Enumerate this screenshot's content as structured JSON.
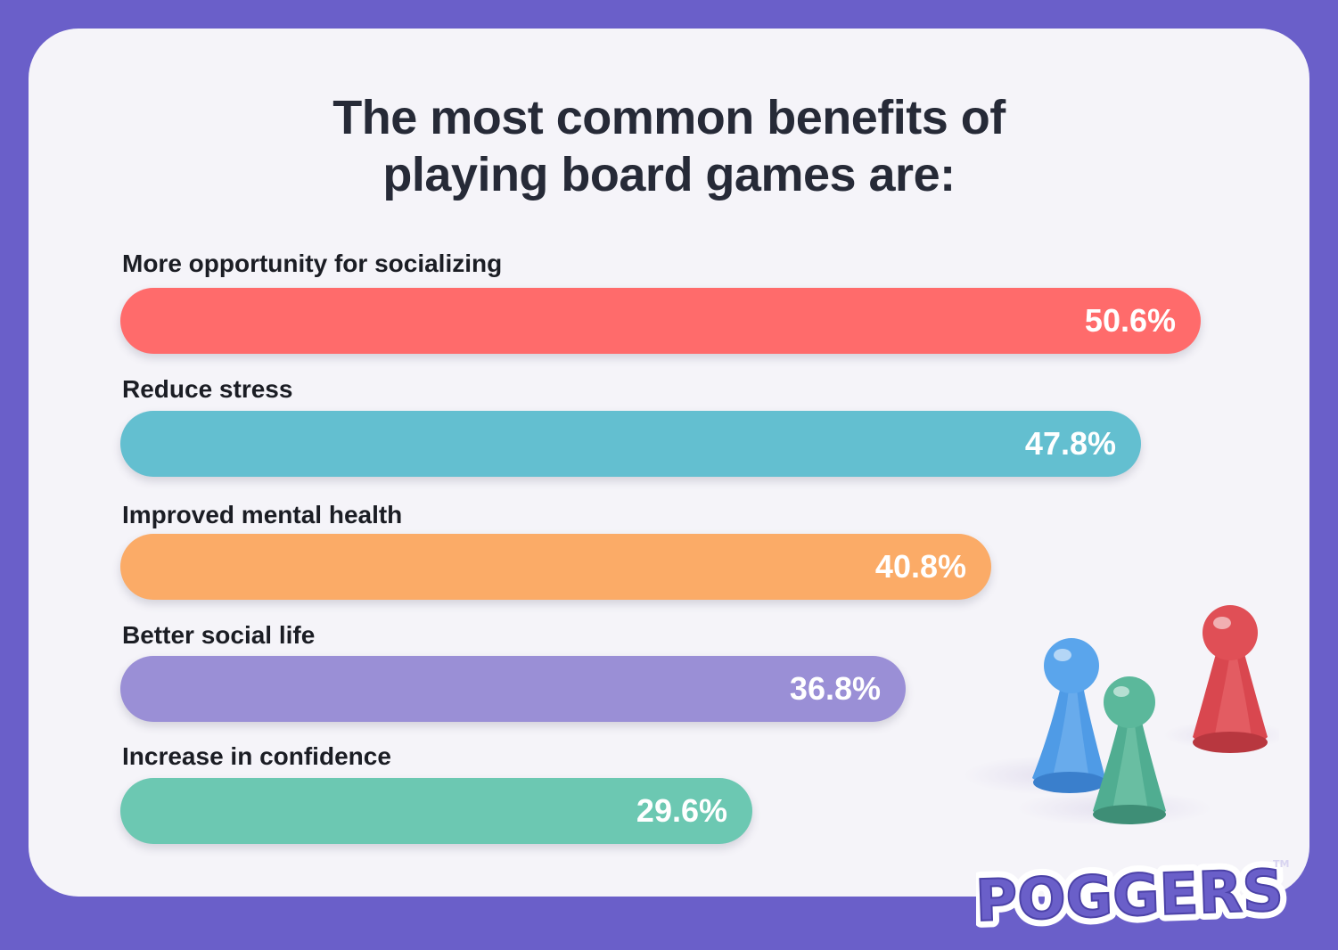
{
  "chart_data": {
    "type": "bar",
    "orientation": "horizontal",
    "title": "The most common benefits of playing board games are:",
    "title_lines": [
      "The most common benefits of",
      "playing board games are:"
    ],
    "categories": [
      "More opportunity for socializing",
      "Reduce stress",
      "Improved mental health",
      "Better social life",
      "Increase in confidence"
    ],
    "values": [
      50.6,
      47.8,
      40.8,
      36.8,
      29.6
    ],
    "value_labels": [
      "50.6%",
      "47.8%",
      "40.8%",
      "36.8%",
      "29.6%"
    ],
    "colors": [
      "#ff6b6b",
      "#63bfd0",
      "#fbab67",
      "#9a8fd6",
      "#6cc8b2"
    ],
    "unit": "%",
    "grid": false,
    "legend": "none"
  },
  "brand": {
    "logo_text": "POGGERS",
    "trademark": "TM"
  },
  "colors": {
    "background": "#6a5fc9",
    "card": "#f5f4f9",
    "title": "#262a37"
  },
  "decoration": {
    "pawn_colors": [
      "#4f9be6",
      "#5bb89b",
      "#e05a5f"
    ],
    "pawn_icons": [
      "blue-pawn-icon",
      "green-pawn-icon",
      "red-pawn-icon"
    ]
  }
}
